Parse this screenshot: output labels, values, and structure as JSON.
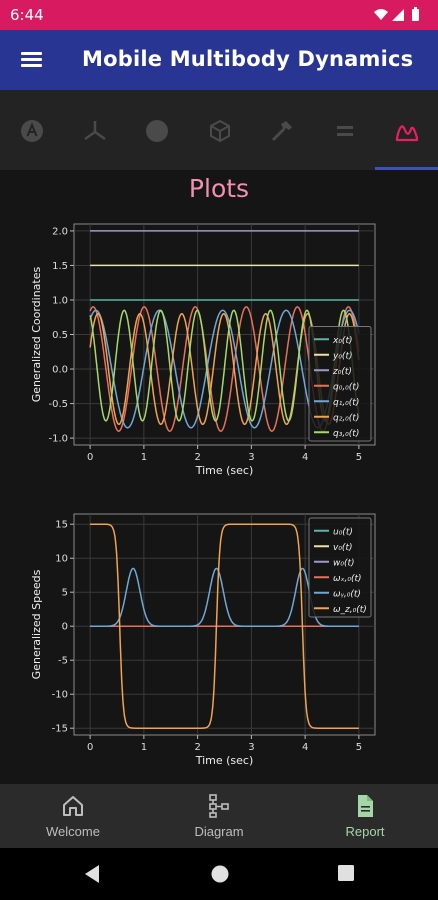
{
  "status_bar": {
    "time": "6:44",
    "background": "#d81b60"
  },
  "app_bar": {
    "title": "Mobile Multibody Dynamics",
    "background": "#283593",
    "menu_icon": "menu-icon"
  },
  "tabs": [
    {
      "icon": "alpha-a-icon",
      "active": false
    },
    {
      "icon": "axes-icon",
      "active": false
    },
    {
      "icon": "circle-icon",
      "active": false
    },
    {
      "icon": "cube-icon",
      "active": false
    },
    {
      "icon": "hammer-icon",
      "active": false
    },
    {
      "icon": "equals-icon",
      "active": false
    },
    {
      "icon": "chart-line-icon",
      "active": true
    }
  ],
  "page_title": "Plots",
  "chart_data": [
    {
      "type": "line",
      "title": "",
      "xlabel": "Time (sec)",
      "ylabel": "Generalized Coordinates",
      "xlim": [
        -0.3,
        5.3
      ],
      "ylim": [
        -1.1,
        2.1
      ],
      "xticks": [
        "0",
        "1",
        "2",
        "3",
        "4",
        "5"
      ],
      "yticks": [
        "-1.0",
        "-0.5",
        "0.0",
        "0.5",
        "1.0",
        "1.5",
        "2.0"
      ],
      "grid": true,
      "legend_position": "lower-right",
      "series": [
        {
          "name": "x₀(t)",
          "color": "#5fb3a6",
          "kind": "const",
          "value": 1.0
        },
        {
          "name": "y₀(t)",
          "color": "#e8e3a8",
          "kind": "const",
          "value": 1.5
        },
        {
          "name": "z₀(t)",
          "color": "#9e9ac8",
          "kind": "const",
          "value": 2.0
        },
        {
          "name": "q₀,₀(t)",
          "color": "#e8715a",
          "kind": "sine",
          "amp": 0.9,
          "period": 0.95,
          "phase": 1.2,
          "offset": 0.0
        },
        {
          "name": "q₁,₀(t)",
          "color": "#6fa8d6",
          "kind": "sine",
          "amp": 0.85,
          "period": 1.18,
          "phase": 1.0,
          "offset": 0.0
        },
        {
          "name": "q₂,₀(t)",
          "color": "#f0a350",
          "kind": "sine",
          "amp": 0.8,
          "period": 0.78,
          "phase": 0.4,
          "offset": 0.0
        },
        {
          "name": "q₃,₀(t)",
          "color": "#a6d96a",
          "kind": "sine",
          "amp": 0.8,
          "period": 0.68,
          "phase": 2.0,
          "offset": 0.05
        }
      ]
    },
    {
      "type": "line",
      "title": "",
      "xlabel": "Time (sec)",
      "ylabel": "Generalized Speeds",
      "xlim": [
        -0.3,
        5.3
      ],
      "ylim": [
        -16,
        16.5
      ],
      "xticks": [
        "0",
        "1",
        "2",
        "3",
        "4",
        "5"
      ],
      "yticks": [
        "-15",
        "-10",
        "-5",
        "0",
        "5",
        "10",
        "15"
      ],
      "grid": true,
      "legend_position": "upper-right",
      "series": [
        {
          "name": "u₀(t)",
          "color": "#5fb3a6",
          "kind": "const",
          "value": 0
        },
        {
          "name": "v₀(t)",
          "color": "#e8e3a8",
          "kind": "const",
          "value": 0
        },
        {
          "name": "w₀(t)",
          "color": "#9e9ac8",
          "kind": "const",
          "value": 0
        },
        {
          "name": "ωₓ,₀(t)",
          "color": "#e8715a",
          "kind": "const",
          "value": 0
        },
        {
          "name": "ωᵧ,₀(t)",
          "color": "#6fa8d6",
          "kind": "peaks",
          "peaks": [
            0.8,
            2.35,
            3.95
          ],
          "height": 8.5,
          "width": 0.18
        },
        {
          "name": "ω_z,₀(t)",
          "color": "#f0a350",
          "kind": "plateau",
          "levels": [
            15,
            -15,
            15,
            -15
          ],
          "edges": [
            0.55,
            2.35,
            3.95
          ],
          "width": 0.13
        }
      ]
    }
  ],
  "bottom_nav": [
    {
      "label": "Welcome",
      "icon": "home-icon",
      "active": false
    },
    {
      "label": "Diagram",
      "icon": "sitemap-icon",
      "active": false
    },
    {
      "label": "Report",
      "icon": "file-document-icon",
      "active": true
    }
  ],
  "system_nav": {
    "back_icon": "back-icon",
    "home_icon": "home-circle-icon",
    "recents_icon": "recents-icon"
  }
}
